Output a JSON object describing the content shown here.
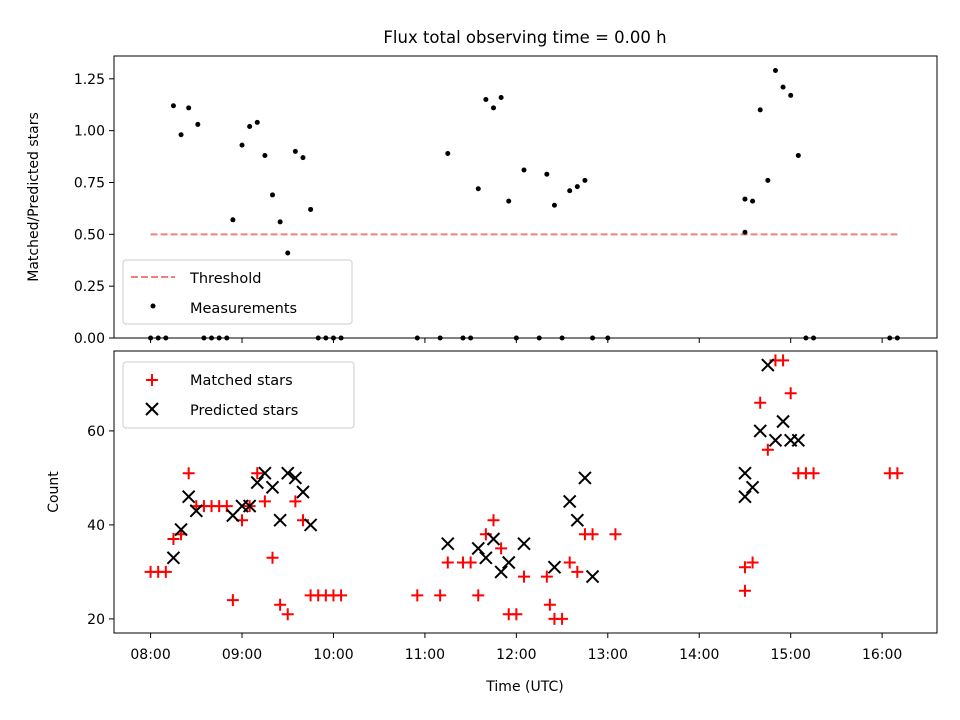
{
  "chart_data": [
    {
      "type": "scatter",
      "title": "Flux total observing time = 0.00 h",
      "ylabel": "Matched/Predicted stars",
      "xlabel": "",
      "xlim": [
        "07:36",
        "16:36"
      ],
      "ylim": [
        0,
        1.36
      ],
      "yticks": [
        "0.00",
        "0.25",
        "0.50",
        "0.75",
        "1.00",
        "1.25"
      ],
      "legend_position": "lower-left",
      "threshold": {
        "name": "Threshold",
        "value": 0.5,
        "x_range": [
          "08:00",
          "16:10"
        ],
        "color": "#f08080"
      },
      "series": [
        {
          "name": "Measurements",
          "color": "#000000",
          "points": [
            [
              "08:00",
              0
            ],
            [
              "08:05",
              0
            ],
            [
              "08:10",
              0
            ],
            [
              "08:15",
              1.12
            ],
            [
              "08:20",
              0.98
            ],
            [
              "08:25",
              1.11
            ],
            [
              "08:31",
              1.03
            ],
            [
              "08:35",
              0
            ],
            [
              "08:40",
              0
            ],
            [
              "08:45",
              0
            ],
            [
              "08:50",
              0
            ],
            [
              "08:54",
              0.57
            ],
            [
              "09:00",
              0.93
            ],
            [
              "09:05",
              1.02
            ],
            [
              "09:10",
              1.04
            ],
            [
              "09:15",
              0.88
            ],
            [
              "09:20",
              0.69
            ],
            [
              "09:25",
              0.56
            ],
            [
              "09:30",
              0.41
            ],
            [
              "09:35",
              0.9
            ],
            [
              "09:40",
              0.87
            ],
            [
              "09:45",
              0.62
            ],
            [
              "09:50",
              0
            ],
            [
              "09:55",
              0
            ],
            [
              "10:00",
              0
            ],
            [
              "10:05",
              0
            ],
            [
              "10:55",
              0
            ],
            [
              "11:10",
              0
            ],
            [
              "11:15",
              0.89
            ],
            [
              "11:25",
              0
            ],
            [
              "11:30",
              0
            ],
            [
              "11:35",
              0.72
            ],
            [
              "11:40",
              1.15
            ],
            [
              "11:45",
              1.11
            ],
            [
              "11:50",
              1.16
            ],
            [
              "11:55",
              0.66
            ],
            [
              "12:00",
              0
            ],
            [
              "12:05",
              0.81
            ],
            [
              "12:15",
              0
            ],
            [
              "12:20",
              0.79
            ],
            [
              "12:25",
              0.64
            ],
            [
              "12:30",
              0
            ],
            [
              "12:35",
              0.71
            ],
            [
              "12:40",
              0.73
            ],
            [
              "12:45",
              0.76
            ],
            [
              "12:50",
              0
            ],
            [
              "13:00",
              0
            ],
            [
              "14:30",
              0.51
            ],
            [
              "14:30",
              0.67
            ],
            [
              "14:35",
              0.66
            ],
            [
              "14:40",
              1.1
            ],
            [
              "14:45",
              0.76
            ],
            [
              "14:50",
              1.29
            ],
            [
              "14:55",
              1.21
            ],
            [
              "15:00",
              1.17
            ],
            [
              "15:05",
              0.88
            ],
            [
              "15:10",
              0
            ],
            [
              "15:15",
              0
            ],
            [
              "16:05",
              0
            ],
            [
              "16:10",
              0
            ]
          ]
        }
      ]
    },
    {
      "type": "scatter",
      "title": "",
      "ylabel": "Count",
      "xlabel": "Time (UTC)",
      "xlim": [
        "07:36",
        "16:36"
      ],
      "ylim": [
        17,
        77
      ],
      "yticks": [
        "20",
        "40",
        "60"
      ],
      "xticks": [
        "08:00",
        "09:00",
        "10:00",
        "11:00",
        "12:00",
        "13:00",
        "14:00",
        "15:00",
        "16:00"
      ],
      "legend_position": "upper-left",
      "series": [
        {
          "name": "Matched stars",
          "marker": "plus",
          "color": "#ff0000",
          "points": [
            [
              "08:00",
              30
            ],
            [
              "08:05",
              30
            ],
            [
              "08:10",
              30
            ],
            [
              "08:15",
              37
            ],
            [
              "08:20",
              38
            ],
            [
              "08:25",
              51
            ],
            [
              "08:30",
              44
            ],
            [
              "08:35",
              44
            ],
            [
              "08:40",
              44
            ],
            [
              "08:45",
              44
            ],
            [
              "08:50",
              44
            ],
            [
              "08:54",
              24
            ],
            [
              "09:00",
              41
            ],
            [
              "09:05",
              44
            ],
            [
              "09:10",
              51
            ],
            [
              "09:15",
              45
            ],
            [
              "09:20",
              33
            ],
            [
              "09:25",
              23
            ],
            [
              "09:30",
              21
            ],
            [
              "09:35",
              45
            ],
            [
              "09:40",
              41
            ],
            [
              "09:45",
              25
            ],
            [
              "09:50",
              25
            ],
            [
              "09:55",
              25
            ],
            [
              "10:00",
              25
            ],
            [
              "10:05",
              25
            ],
            [
              "10:55",
              25
            ],
            [
              "11:10",
              25
            ],
            [
              "11:15",
              32
            ],
            [
              "11:25",
              32
            ],
            [
              "11:30",
              32
            ],
            [
              "11:35",
              25
            ],
            [
              "11:40",
              38
            ],
            [
              "11:45",
              41
            ],
            [
              "11:50",
              35
            ],
            [
              "11:55",
              21
            ],
            [
              "12:00",
              21
            ],
            [
              "12:05",
              29
            ],
            [
              "12:20",
              29
            ],
            [
              "12:22",
              23
            ],
            [
              "12:25",
              20
            ],
            [
              "12:30",
              20
            ],
            [
              "12:35",
              32
            ],
            [
              "12:40",
              30
            ],
            [
              "12:45",
              38
            ],
            [
              "12:50",
              38
            ],
            [
              "13:05",
              38
            ],
            [
              "14:30",
              26
            ],
            [
              "14:30",
              31
            ],
            [
              "14:35",
              32
            ],
            [
              "14:40",
              66
            ],
            [
              "14:45",
              56
            ],
            [
              "14:50",
              75
            ],
            [
              "14:55",
              75
            ],
            [
              "15:00",
              68
            ],
            [
              "15:05",
              51
            ],
            [
              "15:10",
              51
            ],
            [
              "15:15",
              51
            ],
            [
              "16:05",
              51
            ],
            [
              "16:10",
              51
            ]
          ]
        },
        {
          "name": "Predicted stars",
          "marker": "x",
          "color": "#000000",
          "points": [
            [
              "08:15",
              33
            ],
            [
              "08:20",
              39
            ],
            [
              "08:25",
              46
            ],
            [
              "08:30",
              43
            ],
            [
              "08:54",
              42
            ],
            [
              "09:00",
              44
            ],
            [
              "09:05",
              44
            ],
            [
              "09:10",
              49
            ],
            [
              "09:15",
              51
            ],
            [
              "09:20",
              48
            ],
            [
              "09:25",
              41
            ],
            [
              "09:30",
              51
            ],
            [
              "09:35",
              50
            ],
            [
              "09:40",
              47
            ],
            [
              "09:45",
              40
            ],
            [
              "11:15",
              36
            ],
            [
              "11:35",
              35
            ],
            [
              "11:40",
              33
            ],
            [
              "11:45",
              37
            ],
            [
              "11:50",
              30
            ],
            [
              "11:55",
              32
            ],
            [
              "12:05",
              36
            ],
            [
              "12:25",
              31
            ],
            [
              "12:35",
              45
            ],
            [
              "12:40",
              41
            ],
            [
              "12:45",
              50
            ],
            [
              "12:50",
              29
            ],
            [
              "14:30",
              51
            ],
            [
              "14:30",
              46
            ],
            [
              "14:35",
              48
            ],
            [
              "14:40",
              60
            ],
            [
              "14:45",
              74
            ],
            [
              "14:50",
              58
            ],
            [
              "14:55",
              62
            ],
            [
              "15:00",
              58
            ],
            [
              "15:05",
              58
            ]
          ]
        }
      ]
    }
  ]
}
